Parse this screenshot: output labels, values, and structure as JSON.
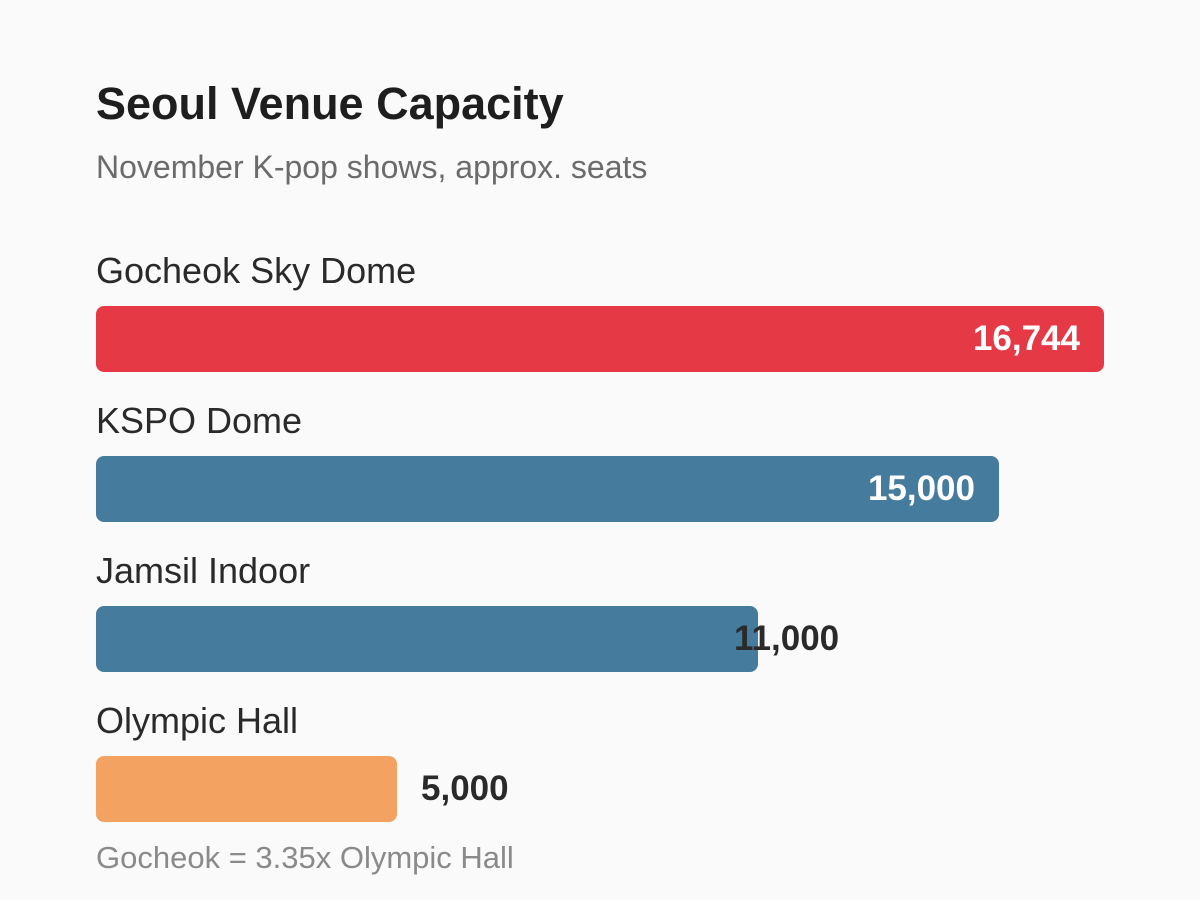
{
  "chart_data": {
    "type": "bar",
    "orientation": "horizontal",
    "title": "Seoul Venue Capacity",
    "subtitle": "November K-pop shows, approx. seats",
    "categories": [
      "Gocheok Sky Dome",
      "KSPO Dome",
      "Jamsil Indoor",
      "Olympic Hall"
    ],
    "values": [
      16744,
      15000,
      11000,
      5000
    ],
    "value_labels": [
      "16,744",
      "15,000",
      "11,000",
      "5,000"
    ],
    "colors": [
      "#e63946",
      "#457b9d",
      "#457b9d",
      "#f4a261"
    ],
    "xlim": [
      0,
      16744
    ],
    "grid": false,
    "legend": "none",
    "annotation": "Gocheok = 3.35x Olympic Hall"
  }
}
